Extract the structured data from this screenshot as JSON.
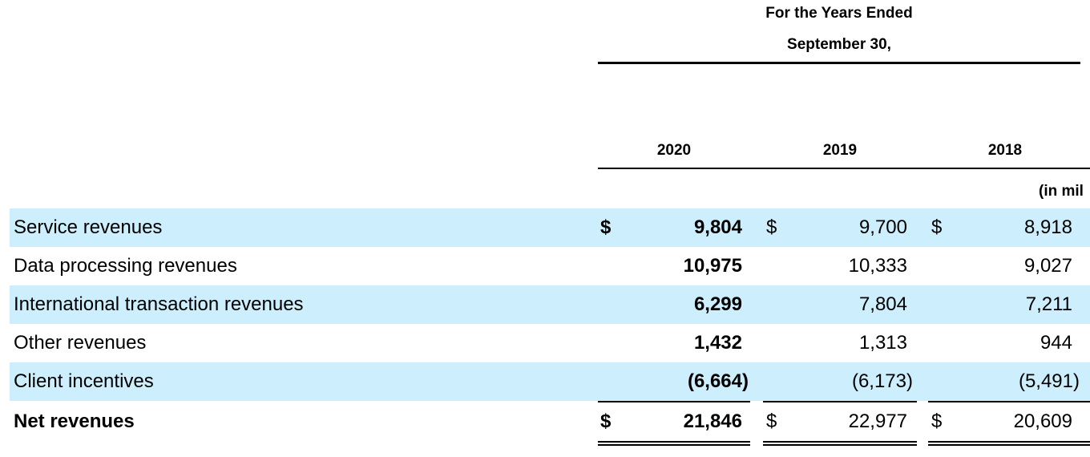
{
  "header": {
    "line1": "For the Years Ended",
    "line2": "September 30,",
    "years": [
      "2020",
      "2019",
      "2018"
    ],
    "units": "(in mil"
  },
  "currency_symbol": "$",
  "rows": [
    {
      "label": "Service revenues",
      "values": [
        "9,804",
        "9,700",
        "8,918"
      ],
      "dollar": true,
      "shaded": true
    },
    {
      "label": "Data processing revenues",
      "values": [
        "10,975",
        "10,333",
        "9,027"
      ],
      "dollar": false,
      "shaded": false
    },
    {
      "label": "International transaction revenues",
      "values": [
        "6,299",
        "7,804",
        "7,211"
      ],
      "dollar": false,
      "shaded": true
    },
    {
      "label": "Other revenues",
      "values": [
        "1,432",
        "1,313",
        "944"
      ],
      "dollar": false,
      "shaded": false
    },
    {
      "label": "Client incentives",
      "values": [
        "(6,664)",
        "(6,173)",
        "(5,491)"
      ],
      "dollar": false,
      "shaded": true
    },
    {
      "label": "Net revenues",
      "values": [
        "21,846",
        "22,977",
        "20,609"
      ],
      "dollar": true,
      "shaded": false
    }
  ]
}
